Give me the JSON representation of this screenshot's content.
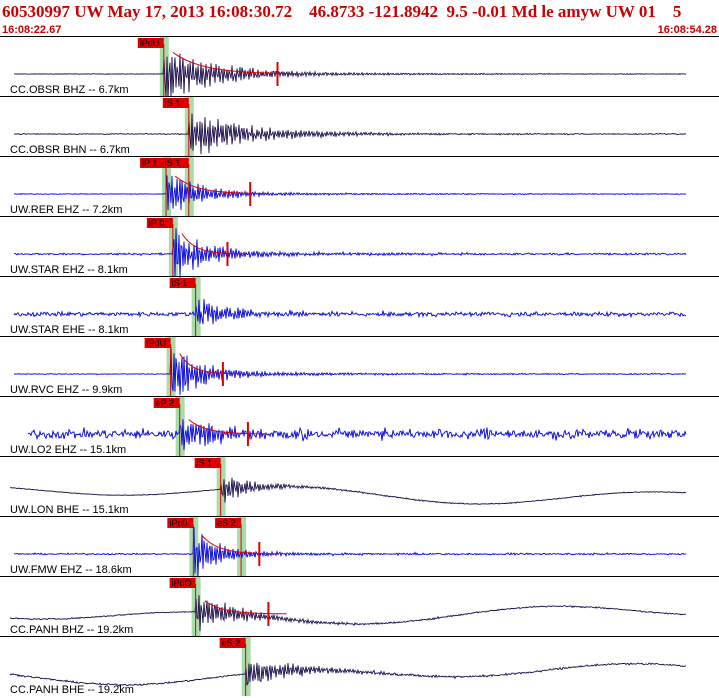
{
  "header": {
    "title": "60530997 UW May 17, 2013 16:08:30.72    46.8733 -121.8942  9.5 -0.01 Md le amyw UW 01    5",
    "time_start": "16:08:22.67",
    "time_end": "16:08:54.28"
  },
  "colors": {
    "header_text": "#cc0000",
    "trace_dark": "#1a0a4a",
    "trace_blue": "#0000dd",
    "pick_box": "#dd0000",
    "fit_curve": "#dd0000",
    "pick_band": "#a8dca8",
    "separator": "#000000"
  },
  "chart_data": {
    "type": "seismogram",
    "x_range_s": [
      0,
      31.61
    ],
    "traces": [
      {
        "label": "CC.OBSR BHZ -- 6.7km",
        "color": "dark",
        "noise": 0.02,
        "amp": 0.9,
        "decay": 4.5,
        "tail": 0.0,
        "curve": false,
        "picks": [
          {
            "label": "iPdU",
            "t": 7.2
          }
        ],
        "coda_end": 12.2
      },
      {
        "label": "CC.OBSR BHN -- 6.7km",
        "color": "dark",
        "noise": 0.04,
        "amp": 0.7,
        "decay": 5.5,
        "tail": 0.0,
        "curve": false,
        "picks": [
          {
            "label": "iS 1",
            "t": 8.3
          }
        ],
        "coda_end": null
      },
      {
        "label": "UW.RER EHZ -- 7.2km",
        "color": "blue",
        "noise": 0.03,
        "amp": 0.75,
        "decay": 3.0,
        "tail": 0.0,
        "curve": false,
        "picks": [
          {
            "label": "iP 1",
            "t": 7.3
          },
          {
            "label": "iS 1",
            "t": 8.3
          }
        ],
        "coda_end": 11.0
      },
      {
        "label": "UW.STAR EHZ -- 8.1km",
        "color": "blue",
        "noise": 0.08,
        "amp": 0.85,
        "decay": 3.0,
        "tail": 0.0,
        "curve": false,
        "picks": [
          {
            "label": "iP 0",
            "t": 7.6
          }
        ],
        "coda_end": 10.0
      },
      {
        "label": "UW.STAR EHE -- 8.1km",
        "color": "blue",
        "noise": 0.18,
        "amp": 0.5,
        "decay": 3.0,
        "tail": 0.0,
        "curve": false,
        "picks": [
          {
            "label": "iS 1",
            "t": 8.6
          }
        ],
        "coda_end": null
      },
      {
        "label": "UW.RVC EHZ -- 9.9km",
        "color": "blue",
        "noise": 0.04,
        "amp": 0.85,
        "decay": 3.0,
        "tail": 0.0,
        "curve": false,
        "picks": [
          {
            "label": "iPdU",
            "t": 7.5
          }
        ],
        "coda_end": 9.8
      },
      {
        "label": "UW.LO2 EHZ -- 15.1km",
        "color": "blue",
        "noise": 0.38,
        "amp": 0.6,
        "decay": 3.5,
        "tail": 0.0,
        "curve": false,
        "picks": [
          {
            "label": "eP 2",
            "t": 7.9
          }
        ],
        "coda_end": 10.9
      },
      {
        "label": "UW.LON BHE -- 15.1km",
        "color": "dark",
        "noise": 0.03,
        "amp": 0.45,
        "decay": 3.0,
        "tail": 0.0,
        "curve": true,
        "picks": [
          {
            "label": "iS 1",
            "t": 9.7
          }
        ],
        "coda_end": null
      },
      {
        "label": "UW.FMW EHZ -- 18.6km",
        "color": "blue",
        "noise": 0.06,
        "amp": 0.75,
        "decay": 2.5,
        "tail": 0.0,
        "curve": false,
        "picks": [
          {
            "label": "iPd0",
            "t": 8.5
          },
          {
            "label": "eS 2",
            "t": 10.6
          }
        ],
        "coda_end": 11.4
      },
      {
        "label": "CC.PANH BHZ -- 19.2km",
        "color": "dark",
        "noise": 0.05,
        "amp": 0.55,
        "decay": 4.0,
        "tail": 0.0,
        "curve": true,
        "picks": [
          {
            "label": "iPdO",
            "t": 8.6
          }
        ],
        "coda_end": 11.8
      },
      {
        "label": "CC.PANH BHE -- 19.2km",
        "color": "dark",
        "noise": 0.07,
        "amp": 0.55,
        "decay": 4.0,
        "tail": 0.0,
        "curve": true,
        "picks": [
          {
            "label": "eS 2",
            "t": 10.8
          }
        ],
        "coda_end": null
      }
    ]
  }
}
